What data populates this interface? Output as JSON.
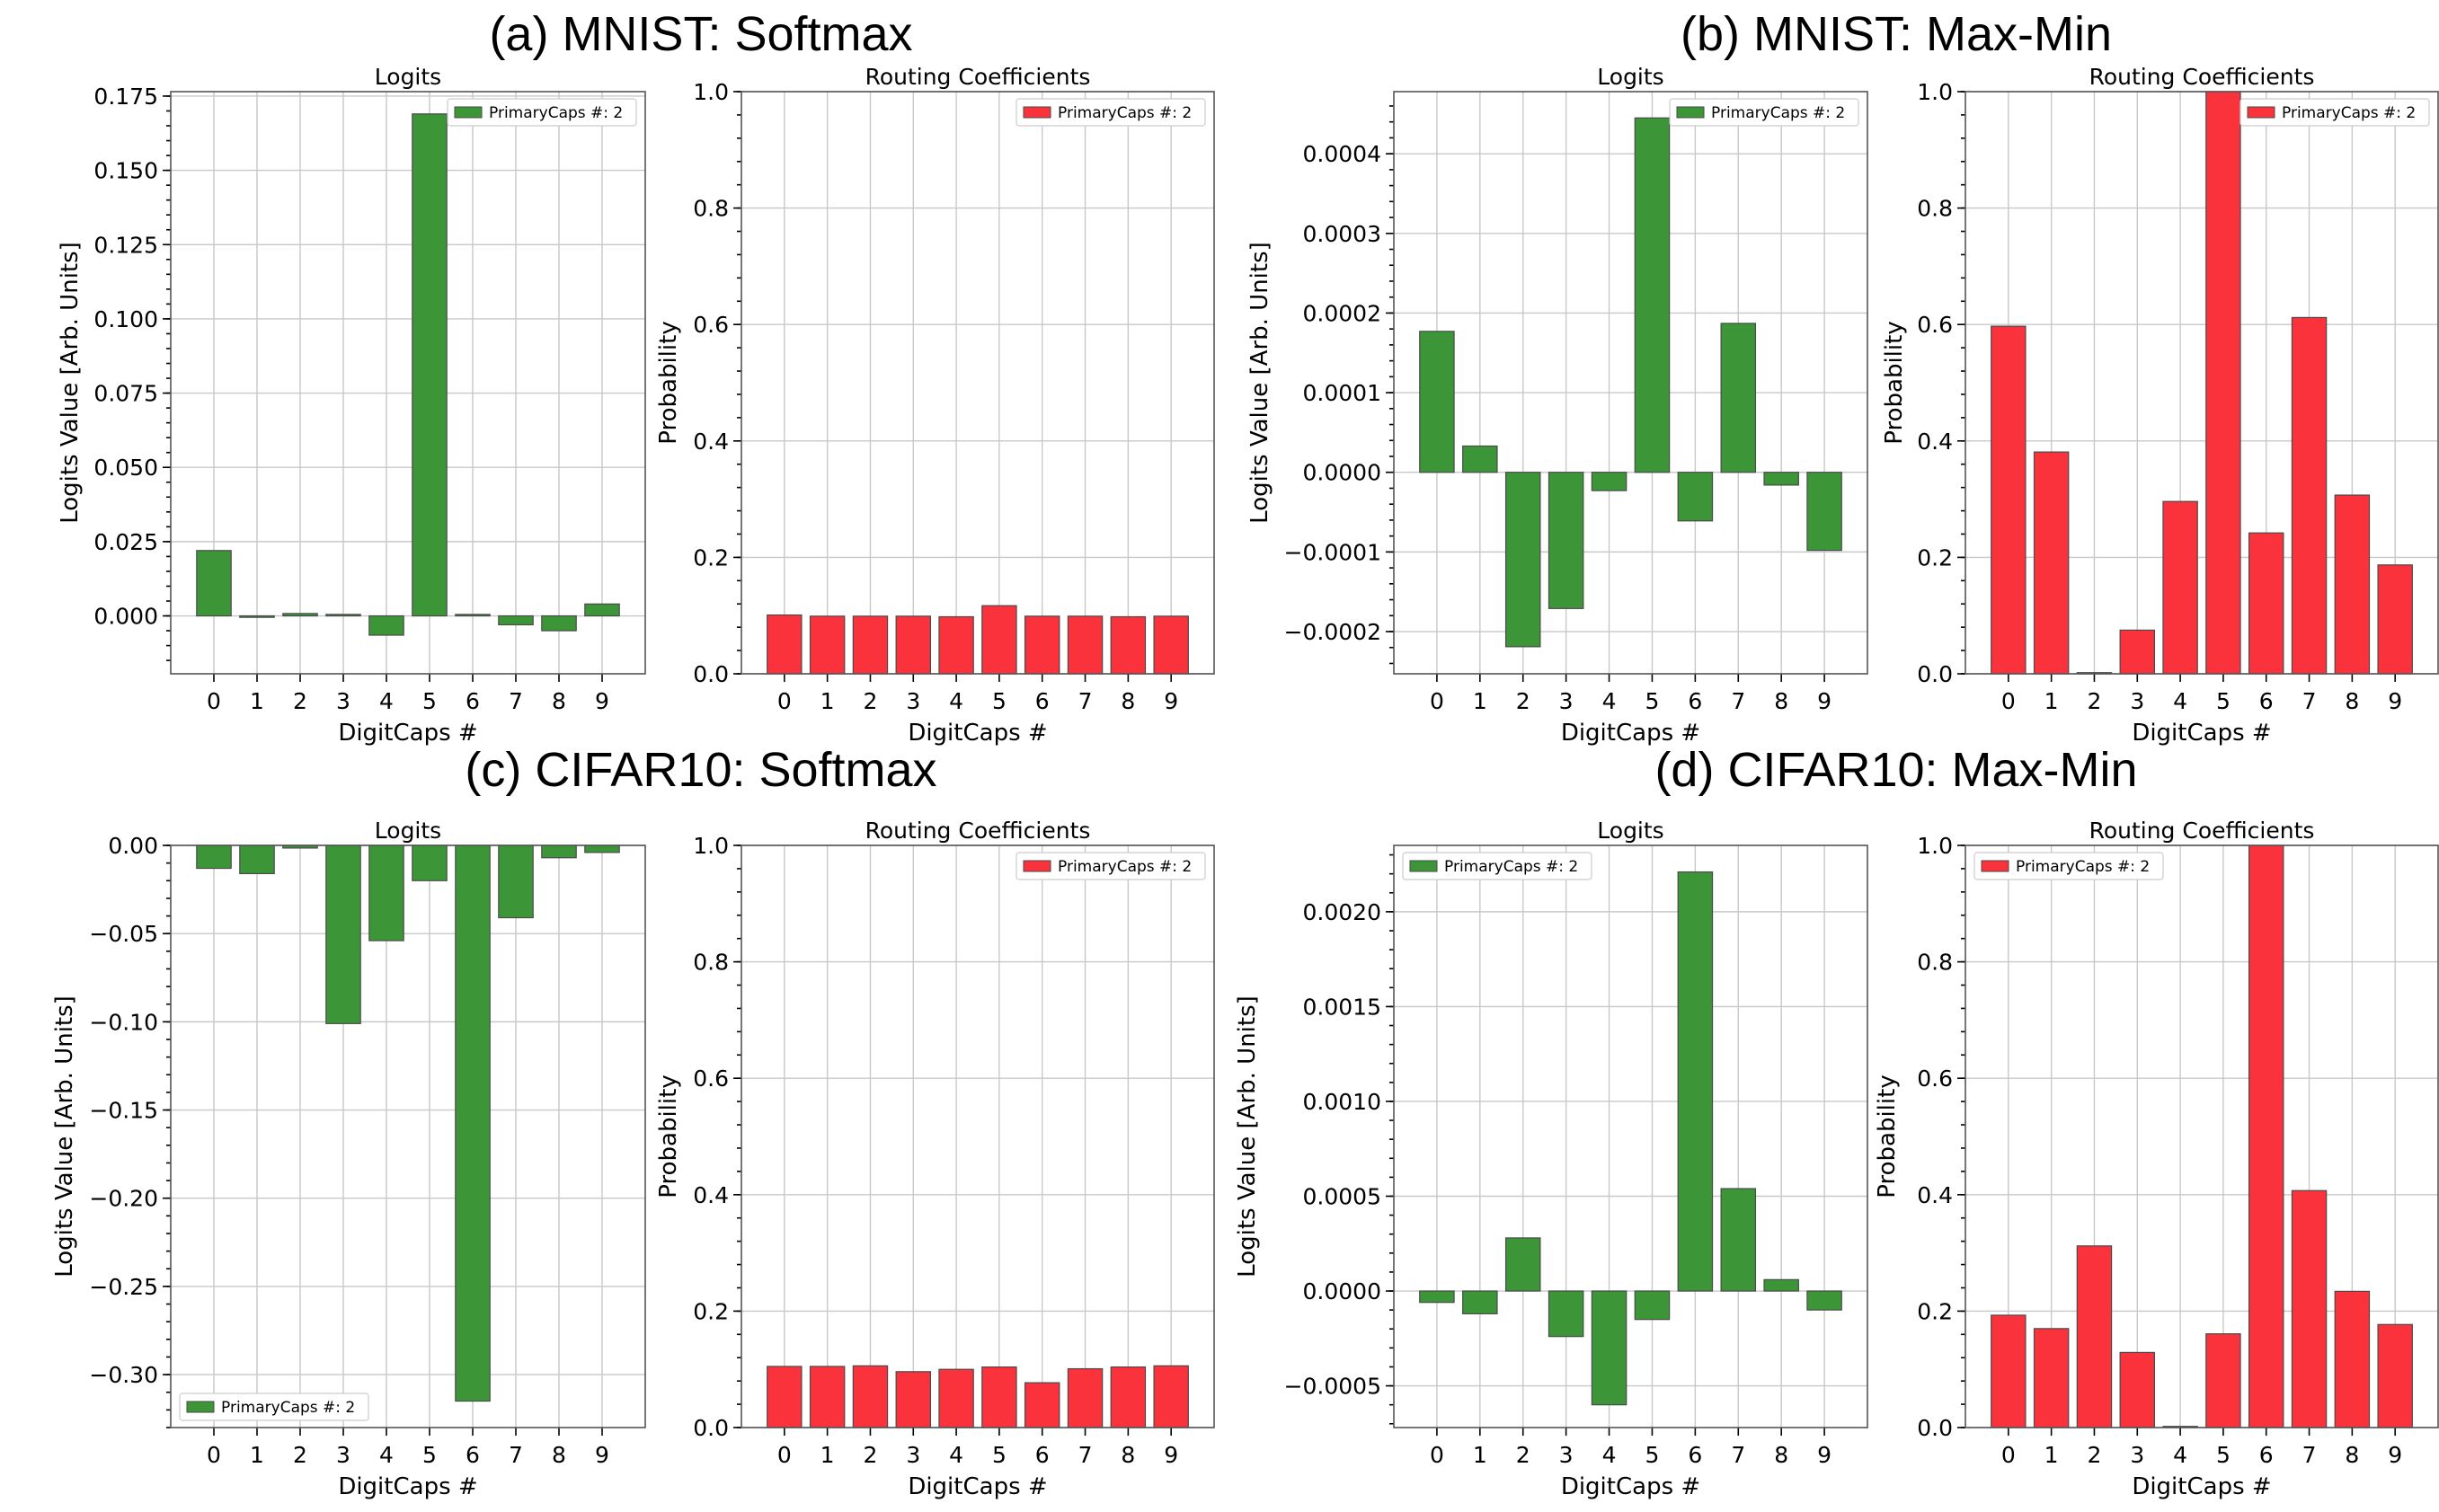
{
  "panel_titles": [
    "(a) MNIST: Softmax",
    "(b) MNIST: Max-Min",
    "(c) CIFAR10: Softmax",
    "(d) CIFAR10: Max-Min"
  ],
  "colors": {
    "logits": "#3c9638",
    "routing": "#fa323c",
    "edge": "#4a4a4a"
  },
  "chart_data": [
    {
      "panel": "(a) MNIST: Softmax",
      "type": "bar",
      "title": "Logits",
      "xlabel": "DigitCaps #",
      "ylabel": "Logits Value [Arb. Units]",
      "legend": "PrimaryCaps #: 2",
      "legend_loc": "upper right",
      "categories": [
        "0",
        "1",
        "2",
        "3",
        "4",
        "5",
        "6",
        "7",
        "8",
        "9"
      ],
      "values": [
        0.022,
        -0.0005,
        0.0008,
        0.0005,
        -0.0065,
        0.169,
        0.0005,
        -0.003,
        -0.005,
        0.004
      ],
      "ylim": [
        -0.0195,
        0.1765
      ],
      "yticks": [
        0.0,
        0.025,
        0.05,
        0.075,
        0.1,
        0.125,
        0.15,
        0.175
      ],
      "ytick_labels": [
        "0.000",
        "0.025",
        "0.050",
        "0.075",
        "0.100",
        "0.125",
        "0.150",
        "0.175"
      ],
      "color": "logits"
    },
    {
      "panel": "(a) MNIST: Softmax",
      "type": "bar",
      "title": "Routing Coefficients",
      "xlabel": "DigitCaps #",
      "ylabel": "Probability",
      "legend": "PrimaryCaps #: 2",
      "legend_loc": "upper right",
      "categories": [
        "0",
        "1",
        "2",
        "3",
        "4",
        "5",
        "6",
        "7",
        "8",
        "9"
      ],
      "values": [
        0.101,
        0.099,
        0.099,
        0.099,
        0.098,
        0.117,
        0.099,
        0.099,
        0.098,
        0.099
      ],
      "ylim": [
        0,
        1.0
      ],
      "yticks": [
        0,
        0.2,
        0.4,
        0.6,
        0.8,
        1.0
      ],
      "ytick_labels": [
        "0.0",
        "0.2",
        "0.4",
        "0.6",
        "0.8",
        "1.0"
      ],
      "color": "routing"
    },
    {
      "panel": "(b) MNIST: Max-Min",
      "type": "bar",
      "title": "Logits",
      "xlabel": "DigitCaps #",
      "ylabel": "Logits Value [Arb. Units]",
      "legend": "PrimaryCaps #: 2",
      "legend_loc": "upper right",
      "categories": [
        "0",
        "1",
        "2",
        "3",
        "4",
        "5",
        "6",
        "7",
        "8",
        "9"
      ],
      "values": [
        0.000177,
        3.3e-05,
        -0.000219,
        -0.000171,
        -2.3e-05,
        0.000445,
        -6.1e-05,
        0.000187,
        -1.6e-05,
        -9.8e-05
      ],
      "ylim": [
        -0.000253,
        0.000478
      ],
      "yticks": [
        -0.0002,
        -0.0001,
        0.0,
        0.0001,
        0.0002,
        0.0003,
        0.0004
      ],
      "ytick_labels": [
        "−0.0002",
        "−0.0001",
        "0.0000",
        "0.0001",
        "0.0002",
        "0.0003",
        "0.0004"
      ],
      "color": "logits"
    },
    {
      "panel": "(b) MNIST: Max-Min",
      "type": "bar",
      "title": "Routing Coefficients",
      "xlabel": "DigitCaps #",
      "ylabel": "Probability",
      "legend": "PrimaryCaps #: 2",
      "legend_loc": "upper right",
      "categories": [
        "0",
        "1",
        "2",
        "3",
        "4",
        "5",
        "6",
        "7",
        "8",
        "9"
      ],
      "values": [
        0.597,
        0.381,
        0.002,
        0.075,
        0.296,
        1.0,
        0.242,
        0.612,
        0.307,
        0.187
      ],
      "ylim": [
        0,
        1.0
      ],
      "yticks": [
        0,
        0.2,
        0.4,
        0.6,
        0.8,
        1.0
      ],
      "ytick_labels": [
        "0.0",
        "0.2",
        "0.4",
        "0.6",
        "0.8",
        "1.0"
      ],
      "color": "routing"
    },
    {
      "panel": "(c) CIFAR10: Softmax",
      "type": "bar",
      "title": "Logits",
      "xlabel": "DigitCaps #",
      "ylabel": "Logits Value [Arb. Units]",
      "legend": "PrimaryCaps #: 2",
      "legend_loc": "lower left",
      "categories": [
        "0",
        "1",
        "2",
        "3",
        "4",
        "5",
        "6",
        "7",
        "8",
        "9"
      ],
      "values": [
        -0.013,
        -0.016,
        -0.0015,
        -0.101,
        -0.054,
        -0.02,
        -0.315,
        -0.041,
        -0.007,
        -0.004
      ],
      "ylim": [
        -0.33,
        0.0
      ],
      "yticks": [
        -0.3,
        -0.25,
        -0.2,
        -0.15,
        -0.1,
        -0.05,
        0.0
      ],
      "ytick_labels": [
        "−0.30",
        "−0.25",
        "−0.20",
        "−0.15",
        "−0.10",
        "−0.05",
        "0.00"
      ],
      "color": "logits"
    },
    {
      "panel": "(c) CIFAR10: Softmax",
      "type": "bar",
      "title": "Routing Coefficients",
      "xlabel": "DigitCaps #",
      "ylabel": "Probability",
      "legend": "PrimaryCaps #: 2",
      "legend_loc": "upper right",
      "categories": [
        "0",
        "1",
        "2",
        "3",
        "4",
        "5",
        "6",
        "7",
        "8",
        "9"
      ],
      "values": [
        0.105,
        0.105,
        0.106,
        0.096,
        0.1,
        0.104,
        0.077,
        0.101,
        0.104,
        0.106
      ],
      "ylim": [
        0,
        1.0
      ],
      "yticks": [
        0,
        0.2,
        0.4,
        0.6,
        0.8,
        1.0
      ],
      "ytick_labels": [
        "0.0",
        "0.2",
        "0.4",
        "0.6",
        "0.8",
        "1.0"
      ],
      "color": "routing"
    },
    {
      "panel": "(d) CIFAR10: Max-Min",
      "type": "bar",
      "title": "Logits",
      "xlabel": "DigitCaps #",
      "ylabel": "Logits Value [Arb. Units]",
      "legend": "PrimaryCaps #: 2",
      "legend_loc": "upper left",
      "categories": [
        "0",
        "1",
        "2",
        "3",
        "4",
        "5",
        "6",
        "7",
        "8",
        "9"
      ],
      "values": [
        -6e-05,
        -0.00012,
        0.00028,
        -0.00024,
        -0.0006,
        -0.00015,
        0.00221,
        0.00054,
        6e-05,
        -0.0001
      ],
      "ylim": [
        -0.00072,
        0.00235
      ],
      "yticks": [
        -0.0005,
        0.0,
        0.0005,
        0.001,
        0.0015,
        0.002
      ],
      "ytick_labels": [
        "−0.0005",
        "0.0000",
        "0.0005",
        "0.0010",
        "0.0015",
        "0.0020"
      ],
      "color": "logits"
    },
    {
      "panel": "(d) CIFAR10: Max-Min",
      "type": "bar",
      "title": "Routing Coefficients",
      "xlabel": "DigitCaps #",
      "ylabel": "Probability",
      "legend": "PrimaryCaps #: 2",
      "legend_loc": "upper left",
      "categories": [
        "0",
        "1",
        "2",
        "3",
        "4",
        "5",
        "6",
        "7",
        "8",
        "9"
      ],
      "values": [
        0.193,
        0.17,
        0.312,
        0.129,
        0.002,
        0.161,
        1.0,
        0.407,
        0.234,
        0.177
      ],
      "ylim": [
        0,
        1.0
      ],
      "yticks": [
        0,
        0.2,
        0.4,
        0.6,
        0.8,
        1.0
      ],
      "ytick_labels": [
        "0.0",
        "0.2",
        "0.4",
        "0.6",
        "0.8",
        "1.0"
      ],
      "color": "routing"
    }
  ]
}
